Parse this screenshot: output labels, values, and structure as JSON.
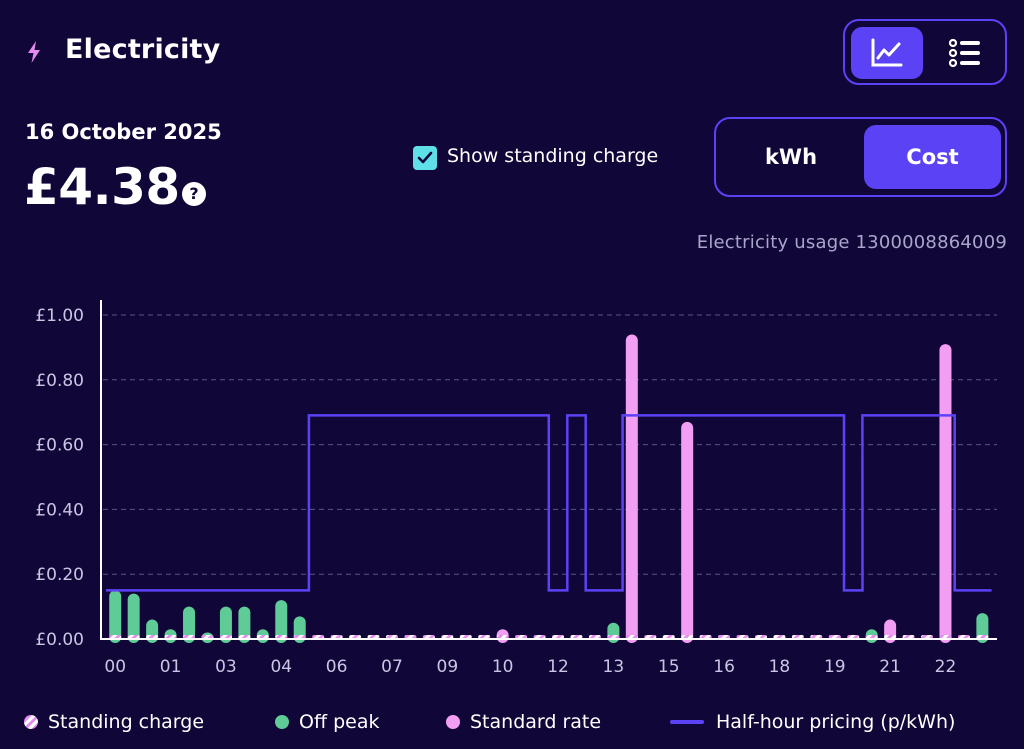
{
  "header": {
    "title": "Electricity",
    "icon": "lightning-bolt-icon"
  },
  "view_toggle": {
    "chart_icon": "line-chart-icon",
    "list_icon": "list-icon",
    "selected": "chart"
  },
  "summary": {
    "date": "16 October 2025",
    "amount": "£4.38",
    "help_icon": "?"
  },
  "standing_charge_toggle": {
    "label": "Show standing charge",
    "checked": true
  },
  "unit_toggle": {
    "kwh_label": "kWh",
    "cost_label": "Cost",
    "selected": "Cost"
  },
  "meter_label": "Electricity usage 1300008864009",
  "colors": {
    "background": "#110638",
    "accent": "#5b43f5",
    "off_peak": "#5fcb97",
    "standard_rate": "#f29ef2",
    "standing_charge": "#e68cf0"
  },
  "legend": {
    "standing": "Standing charge",
    "offpeak": "Off peak",
    "standard": "Standard rate",
    "pricing": "Half-hour pricing (p/kWh)"
  },
  "chart_data": {
    "type": "bar",
    "y_ticks": [
      "£0.00",
      "£0.20",
      "£0.40",
      "£0.60",
      "£0.80",
      "£1.00"
    ],
    "ylim": [
      0,
      1.0
    ],
    "x_tick_labels": [
      "00",
      "01",
      "03",
      "04",
      "06",
      "07",
      "09",
      "10",
      "12",
      "13",
      "15",
      "16",
      "18",
      "19",
      "21",
      "22"
    ],
    "slots": 48,
    "standing_charge_per_slot": 0.01,
    "series": [
      {
        "name": "Off peak",
        "values": [
          0.15,
          0.14,
          0.06,
          0.03,
          0.1,
          0.02,
          0.1,
          0.1,
          0.03,
          0.12,
          0.07,
          0,
          0,
          0,
          0,
          0,
          0,
          0,
          0,
          0,
          0,
          0,
          0,
          0,
          0,
          0,
          0,
          0.05,
          0,
          0,
          0,
          0,
          0,
          0,
          0,
          0,
          0,
          0,
          0,
          0,
          0,
          0.03,
          0,
          0,
          0,
          0,
          0,
          0.08
        ]
      },
      {
        "name": "Standard rate",
        "values": [
          0,
          0,
          0,
          0,
          0,
          0,
          0,
          0,
          0,
          0,
          0,
          0,
          0,
          0,
          0,
          0,
          0,
          0,
          0,
          0,
          0,
          0.03,
          0,
          0,
          0,
          0,
          0,
          0,
          0.94,
          0,
          0,
          0.67,
          0,
          0,
          0,
          0,
          0,
          0,
          0,
          0,
          0,
          0,
          0.06,
          0,
          0,
          0.91,
          0,
          0
        ]
      },
      {
        "name": "Half-hour pricing (p/kWh)",
        "values": [
          0.15,
          0.15,
          0.15,
          0.15,
          0.15,
          0.15,
          0.15,
          0.15,
          0.15,
          0.15,
          0.15,
          0.69,
          0.69,
          0.69,
          0.69,
          0.69,
          0.69,
          0.69,
          0.69,
          0.69,
          0.69,
          0.69,
          0.69,
          0.69,
          0.15,
          0.69,
          0.15,
          0.15,
          0.69,
          0.69,
          0.69,
          0.69,
          0.69,
          0.69,
          0.69,
          0.69,
          0.69,
          0.69,
          0.69,
          0.69,
          0.15,
          0.69,
          0.69,
          0.69,
          0.69,
          0.69,
          0.15,
          0.15
        ]
      }
    ]
  }
}
